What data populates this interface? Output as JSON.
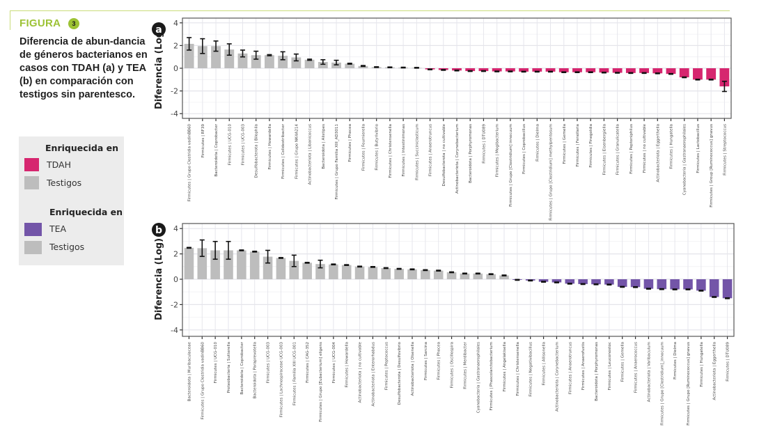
{
  "figure": {
    "label": "FIGURA",
    "number": "3",
    "title": "Diferencia de abun-dancia de géneros bacterianos en casos con TDAH (a) y TEA (b) en comparación con testigos sin parentesco."
  },
  "legend": {
    "groups": [
      {
        "heading": "Enriquecida en",
        "items": [
          {
            "label": "TDAH",
            "color": "#d6266f"
          },
          {
            "label": "Testigos",
            "color": "#bdbdbd"
          }
        ]
      },
      {
        "heading": "Enriquecida en",
        "items": [
          {
            "label": "TEA",
            "color": "#7355a8"
          },
          {
            "label": "Testigos",
            "color": "#bdbdbd"
          }
        ]
      }
    ]
  },
  "chart_data": [
    {
      "type": "bar",
      "panel": "a",
      "ylabel": "Diferencia (Log)",
      "ylim": [
        -4.4,
        4.4
      ],
      "yticks": [
        4,
        2,
        0,
        -2,
        -4
      ],
      "grid": true,
      "positive_color": "#bdbdbd",
      "negative_color": "#d6266f",
      "categories": [
        "Firmicutes | Grupo Clostridia vadinBB60",
        "Firmicutes | RF39",
        "Bacteroidota | Coprobacter",
        "Firmicutes | UCG-010",
        "Firmicutes | UCG-003",
        "Desulfobacterota | Bilophila",
        "Firmicutes | Howardella",
        "Firmicutes | Colidextribacter",
        "Firmicutes | Grupo NK4A214",
        "Actinobacteriota | Libanicoccus",
        "Bacteroidota | Alistipes",
        "Firmicutes | Grupo Familia XIII_AD3011",
        "Firmicutes | Phocea",
        "Firmicutes | Fournierella",
        "Firmicutes | Butyrivibrio",
        "Firmicutes | Christensenella",
        "Firmicutes | Intestinimonas",
        "Firmicutes | Succiniclasticum",
        "Firmicutes | Anaerotruncus",
        "Desulfobacterota | no cultivable",
        "Actinobacteriota | Corynebacterium",
        "Bacteroidota | Porphyromonas",
        "Firmicutes | DTU089",
        "Firmicutes | Mogibacterium",
        "Firmicutes | Grupo [Clostridium] innocuum",
        "Firmicutes | Coprobacillus",
        "Firmicutes | Dielma",
        "Firmicutes | Grupo [Clostridium] methylpentosum",
        "Firmicutes | Gemella",
        "Firmicutes | Fenollaria",
        "Firmicutes | Finegoldia",
        "Firmicutes | Eisenbergiella",
        "Firmicutes | Granulicatella",
        "Firmicutes | Peptoniphilus",
        "Firmicutes | no cultivable",
        "Actinobacteriota | Eggerthella",
        "Firmicutes | Hungatella",
        "Cyanobacteria | Gastranaerophilales",
        "Firmicutes | Lactobacillus",
        "Firmicutes | Group [Ruminococcus] gnavus",
        "Firmicutes | Streptococcus"
      ],
      "values": [
        2.15,
        1.95,
        1.95,
        1.65,
        1.3,
        1.15,
        1.15,
        1.1,
        0.95,
        0.75,
        0.55,
        0.5,
        0.4,
        0.2,
        0.1,
        0.08,
        0.06,
        0.04,
        -0.1,
        -0.15,
        -0.2,
        -0.25,
        -0.25,
        -0.28,
        -0.28,
        -0.3,
        -0.3,
        -0.3,
        -0.35,
        -0.35,
        -0.35,
        -0.38,
        -0.4,
        -0.42,
        -0.42,
        -0.45,
        -0.5,
        -0.8,
        -1.0,
        -1.0,
        -1.6
      ],
      "errors": [
        0.55,
        0.65,
        0.45,
        0.5,
        0.3,
        0.35,
        0.05,
        0.35,
        0.3,
        0.05,
        0.2,
        0.2,
        0.04,
        0.04,
        0.03,
        0.03,
        0.03,
        0.03,
        0.03,
        0.03,
        0.03,
        0.03,
        0.03,
        0.03,
        0.03,
        0.03,
        0.03,
        0.03,
        0.03,
        0.03,
        0.03,
        0.03,
        0.03,
        0.03,
        0.03,
        0.03,
        0.03,
        0.03,
        0.03,
        0.03,
        0.45
      ]
    },
    {
      "type": "bar",
      "panel": "b",
      "ylabel": "Diferencia (Log)",
      "ylim": [
        -4.4,
        4.4
      ],
      "yticks": [
        4,
        2,
        0,
        -2,
        -4
      ],
      "grid": true,
      "positive_color": "#bdbdbd",
      "negative_color": "#7355a8",
      "categories": [
        "Bacteroidota | Muribaculaceae",
        "Firmicutes | Grupo Clostridia vadinBB60",
        "Firmicutes | UCG-010",
        "Proteobacteria | Sutterella",
        "Bacteroidota | Coprobacter",
        "Bacteroidota | Paraprevotella",
        "Firmicutes | UCG-003",
        "Firmicutes | Lachnospiraceae UCG-003",
        "Firmicutes | Familia XIII UCG-001",
        "Firmicutes | CAG-352",
        "Firmicutes | Grupo [Eubacterium] eligens",
        "Firmicutes | UCG-004",
        "Firmicutes | Howardella",
        "Actinobacteriota | no cultivable",
        "Actinobacteriota | Enterorhabdus",
        "Firmicutes | Peptococcus",
        "Desulfobacterota | Desulfovibrio",
        "Actinobacteriota | Olsenella",
        "Firmicutes | Sarcina",
        "Firmicutes | Phocea",
        "Firmicutes | Oscillospira",
        "Firmicutes | Merdibacter",
        "Cyanobacteria | Gastranaerophilales",
        "Firmicutes | Phascolarctobacterium",
        "Firmicutes | Angelakisella",
        "Firmicutes | Christensenella",
        "Firmicutes | Negativibacillus",
        "Firmicutes | Allisonella",
        "Actinobacteriota | Corynebacterium",
        "Firmicutes | Anaerotruncus",
        "Firmicutes | Anaerofustis",
        "Bacteroidota | Porphyromonas",
        "Firmicutes | Leuconostoc",
        "Firmicutes | Gemella",
        "Firmicutes | Anaerococcus",
        "Actinobacteriota | Varibaculum",
        "Firmicutes | Grupo [Clostridium]_innocuum",
        "Firmicutes | Dielma",
        "Firmicutes | Grupo [Ruminococcus] gnavus",
        "Firmicutes | Hungatella",
        "Actinobacteriota | Eggerthella",
        "Firmicutes | DTU089"
      ],
      "values": [
        2.48,
        2.45,
        2.28,
        2.28,
        2.28,
        2.18,
        1.78,
        1.68,
        1.45,
        1.3,
        1.2,
        1.17,
        1.12,
        1.0,
        0.97,
        0.88,
        0.82,
        0.78,
        0.72,
        0.68,
        0.55,
        0.45,
        0.45,
        0.4,
        0.3,
        -0.05,
        -0.1,
        -0.2,
        -0.25,
        -0.35,
        -0.38,
        -0.4,
        -0.42,
        -0.6,
        -0.62,
        -0.75,
        -0.78,
        -0.8,
        -0.8,
        -0.9,
        -1.4,
        -1.5
      ],
      "errors": [
        0.03,
        0.65,
        0.7,
        0.7,
        0.03,
        0.03,
        0.5,
        0.03,
        0.45,
        0.03,
        0.3,
        0.03,
        0.03,
        0.03,
        0.03,
        0.03,
        0.03,
        0.03,
        0.03,
        0.03,
        0.03,
        0.03,
        0.03,
        0.03,
        0.03,
        0.03,
        0.03,
        0.03,
        0.03,
        0.03,
        0.03,
        0.03,
        0.03,
        0.03,
        0.03,
        0.03,
        0.03,
        0.03,
        0.03,
        0.03,
        0.03,
        0.03
      ]
    }
  ]
}
